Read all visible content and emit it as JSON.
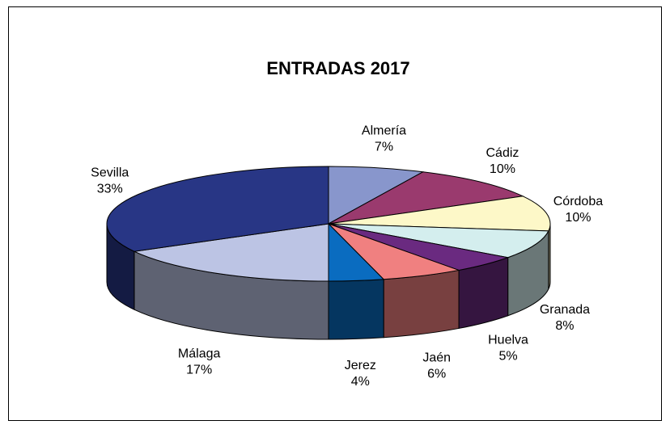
{
  "chart_data": {
    "type": "pie3d",
    "title": "ENTRADAS 2017",
    "categories": [
      "Almería",
      "Cádiz",
      "Córdoba",
      "Granada",
      "Huelva",
      "Jaén",
      "Jerez",
      "Málaga",
      "Sevilla"
    ],
    "values": [
      7,
      10,
      10,
      8,
      5,
      6,
      4,
      17,
      33
    ],
    "value_labels": [
      "7%",
      "10%",
      "10%",
      "8%",
      "5%",
      "6%",
      "4%",
      "17%",
      "33%"
    ],
    "colors": [
      "#8896cc",
      "#9a3a6e",
      "#fdf8c8",
      "#d4eeee",
      "#6a2a80",
      "#f08080",
      "#0a6cc0",
      "#bcc4e4",
      "#283685"
    ]
  }
}
